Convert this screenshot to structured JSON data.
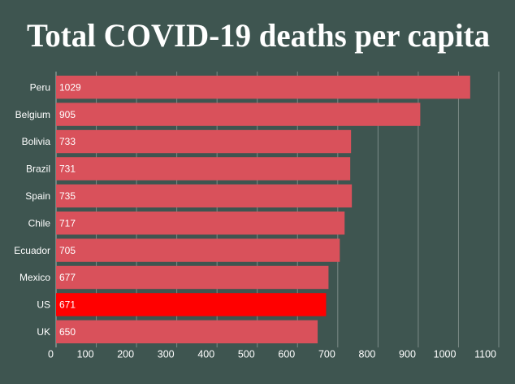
{
  "chart_data": {
    "type": "hbar",
    "title": "Total COVID-19 deaths per capita",
    "categories": [
      "Peru",
      "Belgium",
      "Bolivia",
      "Brazil",
      "Spain",
      "Chile",
      "Ecuador",
      "Mexico",
      "US",
      "UK"
    ],
    "values": [
      1029,
      905,
      733,
      731,
      735,
      717,
      705,
      677,
      671,
      650
    ],
    "colors": [
      "#d9515b",
      "#d9515b",
      "#d9515b",
      "#d9515b",
      "#d9515b",
      "#d9515b",
      "#d9515b",
      "#d9515b",
      "#ff0000",
      "#d9515b"
    ],
    "xlim": [
      0,
      1100
    ],
    "xticks": [
      0,
      100,
      200,
      300,
      400,
      500,
      600,
      700,
      800,
      900,
      1000,
      1100
    ],
    "grid": true
  }
}
